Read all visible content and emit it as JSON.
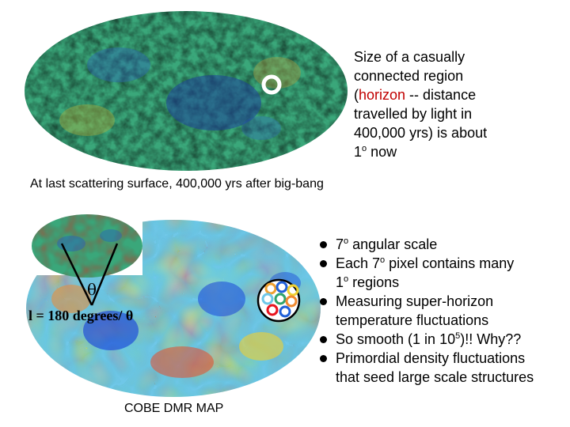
{
  "top_caption": {
    "line1": "Size of a casually",
    "line2": "connected region",
    "line3_pre": "(",
    "line3_red": "horizon",
    "line3_post": " -- distance",
    "line4": "travelled by light in",
    "line5": "400,000 yrs) is about",
    "line6_num": "1",
    "line6_sup": "o",
    "line6_post": " now"
  },
  "mid_caption": "At last scattering surface, 400,000 yrs after big-bang",
  "bullets": [
    {
      "pre": " 7",
      "sup": "o",
      "post": " angular scale",
      "cont": ""
    },
    {
      "pre": "Each 7",
      "sup": "o",
      "post": " pixel contains many",
      "cont_pre": "1",
      "cont_sup": "o",
      "cont_post": " regions"
    },
    {
      "text": "Measuring super-horizon",
      "cont": "temperature fluctuations"
    },
    {
      "pre": "So smooth (1 in 10",
      "sup": "5",
      "post": ")!! Why??"
    },
    {
      "text": "Primordial density fluctuations",
      "cont": "that seed large scale structures"
    }
  ],
  "diagram": {
    "theta": "θ",
    "l_label": "l = 180  degrees/ θ"
  },
  "cobe_caption": "COBE DMR MAP",
  "colors": {
    "horizon_red": "#c00000",
    "circle_red": "#e8141e",
    "wmap_green": "#2fa36b",
    "cobe_blue": "#1f4fd8"
  }
}
